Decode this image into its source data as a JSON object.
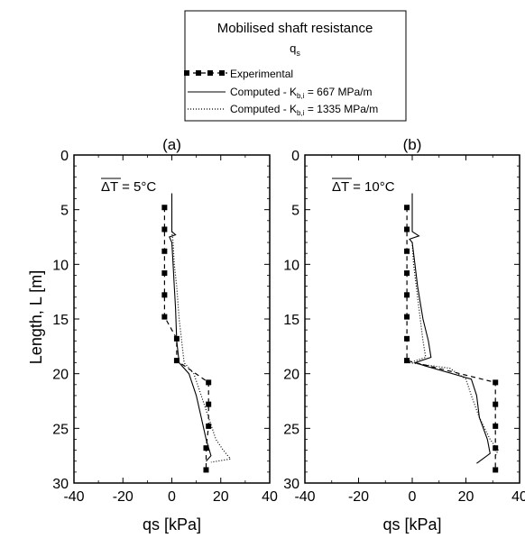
{
  "legend": {
    "title": "Mobilised shaft resistance",
    "symbol": "q",
    "symbol_sub": "s",
    "entries": [
      {
        "key": "exp",
        "text": "Experimental"
      },
      {
        "key": "c1",
        "text": "Computed - K",
        "sub": "b,i",
        "tail": " = 667 MPa/m"
      },
      {
        "key": "c2",
        "text": "Computed - K",
        "sub": "b,i",
        "tail": " = 1335 MPa/m"
      }
    ]
  },
  "chart_data": [
    {
      "type": "line",
      "panel_label": "(a)",
      "annotation": "ΔT = 5°C",
      "xlabel": "qs [kPa]",
      "ylabel": "Length, L [m]",
      "xlim": [
        -40,
        40
      ],
      "ylim": [
        0,
        30
      ],
      "y_inverted": true,
      "xticks": [
        -40,
        -20,
        0,
        20,
        40
      ],
      "yticks": [
        0,
        5,
        10,
        15,
        20,
        25,
        30
      ],
      "series": [
        {
          "name": "Experimental",
          "style": "dashed-square",
          "points": [
            [
              -3,
              4.8
            ],
            [
              -3,
              6.8
            ],
            [
              -3,
              8.8
            ],
            [
              -3,
              10.8
            ],
            [
              -3,
              12.8
            ],
            [
              -3,
              14.8
            ],
            [
              2,
              16.8
            ],
            [
              2,
              18.8
            ],
            [
              15,
              20.8
            ],
            [
              15,
              22.8
            ],
            [
              15,
              24.8
            ],
            [
              14,
              26.8
            ],
            [
              14,
              28.8
            ]
          ]
        },
        {
          "name": "Computed - K b,i = 667 MPa/m",
          "style": "solid",
          "points": [
            [
              0,
              3.5
            ],
            [
              0,
              7.0
            ],
            [
              1.5,
              7.3
            ],
            [
              -1,
              7.5
            ],
            [
              0,
              8.0
            ],
            [
              0.5,
              10
            ],
            [
              1,
              12
            ],
            [
              1.5,
              14
            ],
            [
              2,
              17
            ],
            [
              3,
              19
            ],
            [
              7,
              20
            ],
            [
              10,
              22
            ],
            [
              12,
              24
            ],
            [
              14,
              26
            ],
            [
              16,
              27.5
            ],
            [
              14,
              28
            ]
          ]
        },
        {
          "name": "Computed - K b,i = 1335 MPa/m",
          "style": "dotted",
          "points": [
            [
              0,
              7.0
            ],
            [
              0.5,
              8.0
            ],
            [
              1,
              10
            ],
            [
              2,
              12
            ],
            [
              3,
              15
            ],
            [
              4,
              17
            ],
            [
              5,
              19
            ],
            [
              9,
              20
            ],
            [
              12,
              22
            ],
            [
              15,
              24
            ],
            [
              18,
              26
            ],
            [
              21,
              27
            ],
            [
              24,
              27.8
            ],
            [
              16,
              28.1
            ]
          ]
        }
      ]
    },
    {
      "type": "line",
      "panel_label": "(b)",
      "annotation": "ΔT = 10°C",
      "xlabel": "qs [kPa]",
      "ylabel": "",
      "xlim": [
        -40,
        40
      ],
      "ylim": [
        0,
        30
      ],
      "y_inverted": true,
      "xticks": [
        -40,
        -20,
        0,
        20,
        40
      ],
      "yticks": [
        0,
        5,
        10,
        15,
        20,
        25,
        30
      ],
      "series": [
        {
          "name": "Experimental",
          "style": "dashed-square",
          "points": [
            [
              -2,
              4.8
            ],
            [
              -2,
              6.8
            ],
            [
              -2,
              8.8
            ],
            [
              -2,
              10.8
            ],
            [
              -2,
              12.8
            ],
            [
              -2,
              14.8
            ],
            [
              -2,
              16.8
            ],
            [
              -2,
              18.8
            ],
            [
              31,
              20.8
            ],
            [
              31,
              22.8
            ],
            [
              31,
              24.8
            ],
            [
              31,
              26.8
            ],
            [
              31,
              28.8
            ]
          ]
        },
        {
          "name": "Computed - K b,i = 667 MPa/m",
          "style": "solid",
          "points": [
            [
              0,
              3.5
            ],
            [
              0,
              7.0
            ],
            [
              2.5,
              7.4
            ],
            [
              -1,
              7.7
            ],
            [
              0,
              8.0
            ],
            [
              1,
              10
            ],
            [
              2,
              12
            ],
            [
              4,
              15
            ],
            [
              6,
              17
            ],
            [
              7,
              18.5
            ],
            [
              1,
              19
            ],
            [
              5,
              19.3
            ],
            [
              22,
              20.5
            ],
            [
              24,
              22
            ],
            [
              25,
              24
            ],
            [
              28,
              26
            ],
            [
              29,
              27.3
            ],
            [
              24,
              28.2
            ]
          ]
        },
        {
          "name": "Computed - K b,i = 1335 MPa/m",
          "style": "dotted",
          "points": [
            [
              0,
              8.0
            ],
            [
              0.5,
              10
            ],
            [
              1.5,
              12
            ],
            [
              3,
              15
            ],
            [
              4,
              17
            ],
            [
              5,
              18.5
            ],
            [
              -1,
              19
            ],
            [
              14,
              19.5
            ],
            [
              20,
              20.5
            ],
            [
              22,
              22
            ],
            [
              25,
              24
            ],
            [
              29,
              26
            ],
            [
              32,
              27
            ],
            [
              31,
              27.5
            ]
          ]
        }
      ]
    }
  ]
}
